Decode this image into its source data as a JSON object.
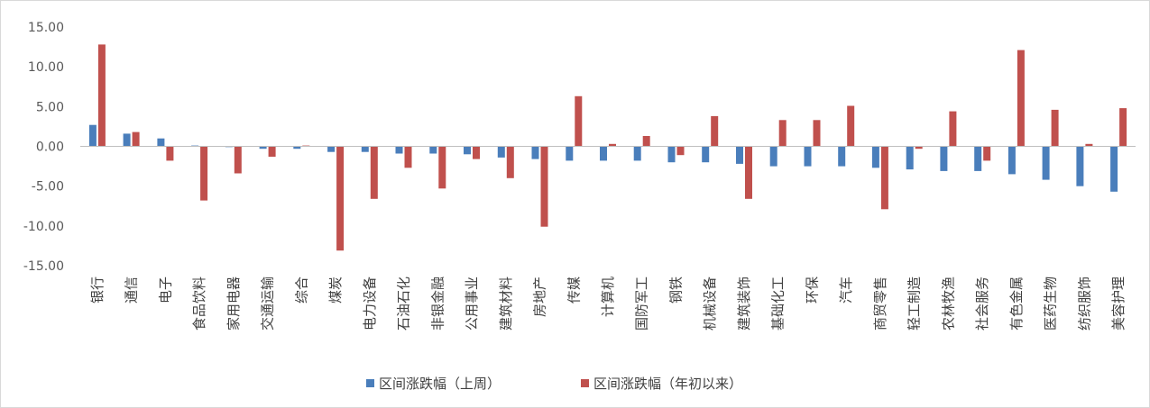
{
  "chart_data": {
    "type": "bar",
    "title": "",
    "xlabel": "",
    "ylabel": "",
    "ylim": [
      -15,
      15
    ],
    "yticks": [
      "15.00",
      "10.00",
      "5.00",
      "0.00",
      "-5.00",
      "-10.00",
      "-15.00"
    ],
    "grid": false,
    "legend_position": "bottom",
    "categories": [
      "银行",
      "通信",
      "电子",
      "食品饮料",
      "家用电器",
      "交通运输",
      "综合",
      "煤炭",
      "电力设备",
      "石油石化",
      "非银金融",
      "公用事业",
      "建筑材料",
      "房地产",
      "传媒",
      "计算机",
      "国防军工",
      "钢铁",
      "机械设备",
      "建筑装饰",
      "基础化工",
      "环保",
      "汽车",
      "商贸零售",
      "轻工制造",
      "农林牧渔",
      "社会服务",
      "有色金属",
      "医药生物",
      "纺织服饰",
      "美容护理"
    ],
    "series": [
      {
        "name": "区间涨跌幅（上周）",
        "color": "#4a7ebb",
        "values": [
          2.7,
          1.6,
          1.0,
          0.1,
          0.0,
          -0.3,
          -0.3,
          -0.7,
          -0.7,
          -0.9,
          -0.9,
          -1.0,
          -1.4,
          -1.6,
          -1.8,
          -1.8,
          -1.8,
          -2.0,
          -2.0,
          -2.2,
          -2.5,
          -2.5,
          -2.5,
          -2.7,
          -2.9,
          -3.1,
          -3.1,
          -3.5,
          -4.2,
          -5.0,
          -5.7
        ]
      },
      {
        "name": "区间涨跌幅（年初以来）",
        "color": "#c0504d",
        "values": [
          12.8,
          1.8,
          -1.8,
          -6.8,
          -3.4,
          -1.3,
          0.1,
          -13.1,
          -6.6,
          -2.7,
          -5.3,
          -1.6,
          -4.0,
          -10.1,
          6.3,
          0.3,
          1.3,
          -1.1,
          3.8,
          -6.6,
          3.3,
          3.3,
          5.1,
          -7.9,
          -0.3,
          4.4,
          -1.8,
          12.1,
          4.6,
          0.3,
          4.8
        ]
      }
    ]
  }
}
